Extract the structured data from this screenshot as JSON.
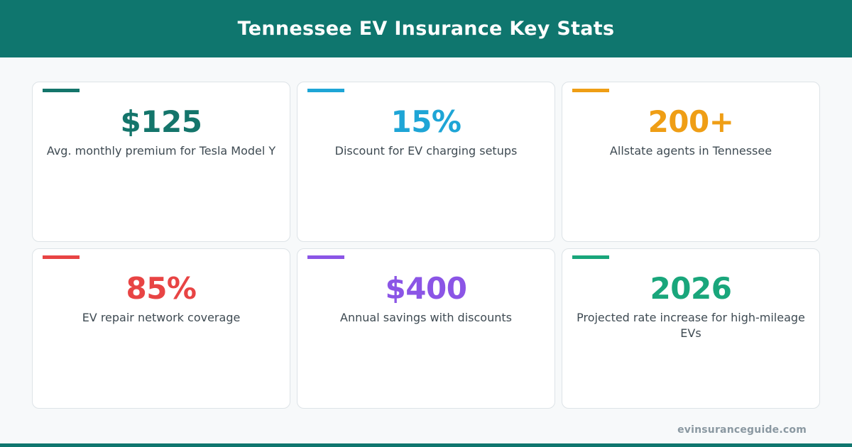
{
  "header": {
    "title": "Tennessee EV Insurance Key Stats"
  },
  "stats": [
    {
      "value": "$125",
      "label": "Avg. monthly premium for Tesla Model Y",
      "color": "#14756b"
    },
    {
      "value": "15%",
      "label": "Discount for EV charging setups",
      "color": "#1ea5d6"
    },
    {
      "value": "200+",
      "label": "Allstate agents in Tennessee",
      "color": "#ef9e15"
    },
    {
      "value": "85%",
      "label": "EV repair network coverage",
      "color": "#e84444"
    },
    {
      "value": "$400",
      "label": "Annual savings with discounts",
      "color": "#8b55e6"
    },
    {
      "value": "2026",
      "label": "Projected rate increase for high-mileage EVs",
      "color": "#19a67b"
    }
  ],
  "footer": {
    "site": "evinsuranceguide.com"
  },
  "colors": {
    "brand": "#0f766e",
    "background": "#f7f9fa",
    "card_border": "#dde3e7",
    "label_text": "#3e4a52",
    "footer_text": "#8a98a1"
  }
}
